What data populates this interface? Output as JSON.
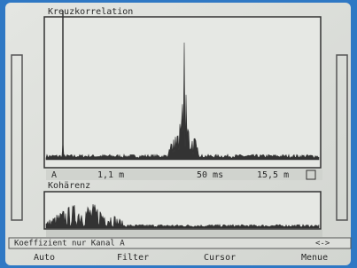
{
  "header": {
    "title": "Kreuzkorrelation"
  },
  "upper_axis": {
    "channel": "A",
    "labels": [
      "1,1 m",
      "50 ms",
      "15,5 m"
    ]
  },
  "lower_panel": {
    "title": "Kohärenz"
  },
  "status": {
    "message": "Koeffizient nur Kanal A",
    "indicator": "<->"
  },
  "menu": {
    "items": [
      "Auto",
      "Filter",
      "Cursor",
      "Menue"
    ]
  }
}
